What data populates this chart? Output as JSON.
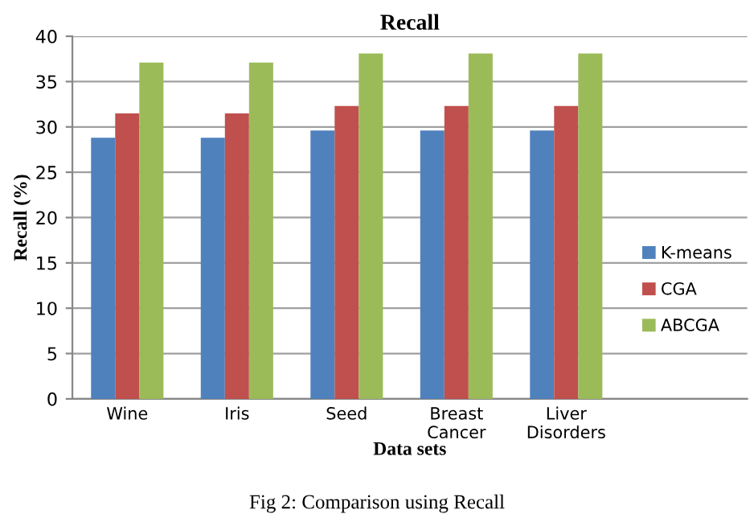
{
  "chart_data": {
    "type": "bar",
    "title": "Recall",
    "xlabel": "Data sets",
    "ylabel": "Recall (%)",
    "categories": [
      "Wine",
      "Iris",
      "Seed",
      "Breast\nCancer",
      "Liver\nDisorders"
    ],
    "series": [
      {
        "name": "K-means",
        "color": "#4f81bd",
        "values": [
          28.8,
          28.8,
          29.6,
          29.6,
          29.6
        ]
      },
      {
        "name": "CGA",
        "color": "#c0504d",
        "values": [
          31.5,
          31.5,
          32.3,
          32.3,
          32.3
        ]
      },
      {
        "name": "ABCGA",
        "color": "#9bbb59",
        "values": [
          37.1,
          37.1,
          38.1,
          38.1,
          38.1
        ]
      }
    ],
    "ylim": [
      0,
      40
    ],
    "yticks": [
      0,
      5,
      10,
      15,
      20,
      25,
      30,
      35,
      40
    ],
    "grid": "y",
    "legend": "right",
    "annotations": [
      "Fig 2: Comparison using Recall"
    ]
  }
}
